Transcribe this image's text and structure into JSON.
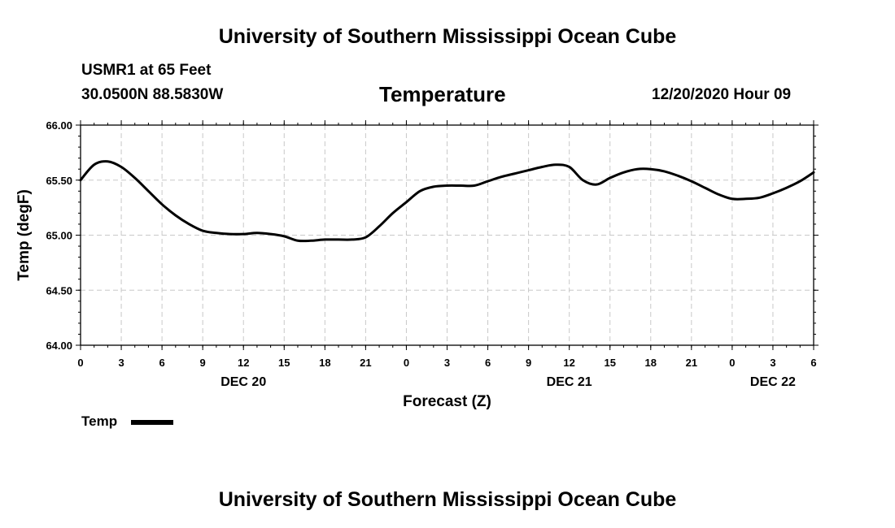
{
  "header": {
    "title": "University of Southern Mississippi Ocean Cube",
    "station": "USMR1 at 65 Feet",
    "coords": "30.0500N 88.5830W",
    "variable": "Temperature",
    "valid_time": "12/20/2020 Hour 09"
  },
  "footer": {
    "title": "University of Southern Mississippi Ocean Cube"
  },
  "legend": {
    "label": "Temp"
  },
  "chart_data": {
    "type": "line",
    "title": "Temperature",
    "xlabel": "Forecast (Z)",
    "ylabel": "Temp (degF)",
    "ylim": [
      64.0,
      66.0
    ],
    "y_ticks": [
      "64.00",
      "64.50",
      "65.00",
      "65.50",
      "66.00"
    ],
    "x_range_hours": [
      0,
      54
    ],
    "x_tick_labels": [
      "0",
      "3",
      "6",
      "9",
      "12",
      "15",
      "18",
      "21",
      "0",
      "3",
      "6",
      "9",
      "12",
      "15",
      "18",
      "21",
      "0",
      "3",
      "6"
    ],
    "date_labels": [
      {
        "label": "DEC 20",
        "hour": 12
      },
      {
        "label": "DEC 21",
        "hour": 36
      },
      {
        "label": "DEC 22",
        "hour": 51
      }
    ],
    "grid": true,
    "legend_position": "bottom-left",
    "series": [
      {
        "name": "Temp",
        "color": "#000000",
        "x": [
          0,
          1,
          2,
          3,
          4,
          5,
          6,
          7,
          8,
          9,
          10,
          11,
          12,
          13,
          14,
          15,
          16,
          17,
          18,
          19,
          20,
          21,
          22,
          23,
          24,
          25,
          26,
          27,
          28,
          29,
          30,
          31,
          32,
          33,
          34,
          35,
          36,
          37,
          38,
          39,
          40,
          41,
          42,
          43,
          44,
          45,
          46,
          47,
          48,
          49,
          50,
          51,
          52,
          53,
          54
        ],
        "values": [
          65.5,
          65.64,
          65.67,
          65.62,
          65.52,
          65.4,
          65.28,
          65.18,
          65.1,
          65.04,
          65.02,
          65.01,
          65.01,
          65.02,
          65.01,
          64.99,
          64.95,
          64.95,
          64.96,
          64.96,
          64.96,
          64.98,
          65.08,
          65.2,
          65.3,
          65.4,
          65.44,
          65.45,
          65.45,
          65.45,
          65.49,
          65.53,
          65.56,
          65.59,
          65.62,
          65.64,
          65.62,
          65.5,
          65.46,
          65.52,
          65.57,
          65.6,
          65.6,
          65.58,
          65.54,
          65.49,
          65.43,
          65.37,
          65.33,
          65.33,
          65.34,
          65.38,
          65.43,
          65.49,
          65.57
        ]
      }
    ]
  }
}
